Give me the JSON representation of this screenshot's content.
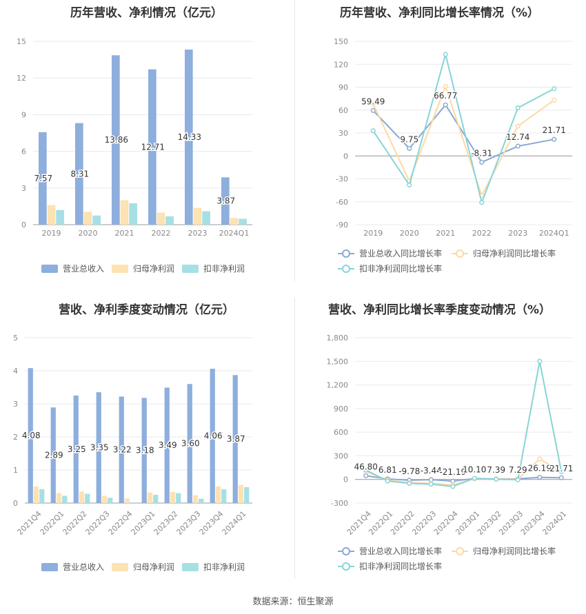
{
  "source_label": "数据来源：恒生聚源",
  "colors": {
    "revenue": "#8eaedd",
    "netprofit": "#fde2b2",
    "deducted": "#a6e0e4",
    "revenue_line": "#8aa8d4",
    "netprofit_line": "#fdd9a0",
    "deducted_line": "#86d4d8"
  },
  "chart_data": [
    {
      "type": "bar",
      "title": "历年营收、净利情况（亿元）",
      "categories": [
        "2019",
        "2020",
        "2021",
        "2022",
        "2023",
        "2024Q1"
      ],
      "ylim": [
        0,
        15
      ],
      "yticks": [
        "0",
        "3",
        "6",
        "9",
        "12",
        "15"
      ],
      "series": [
        {
          "name": "营业总收入",
          "values": [
            7.57,
            8.31,
            13.86,
            12.71,
            14.33,
            3.87
          ],
          "labels": [
            "7.57",
            "8.31",
            "13.86",
            "12.71",
            "14.33",
            "3.87"
          ]
        },
        {
          "name": "归母净利润",
          "values": [
            1.6,
            1.05,
            2.0,
            0.98,
            1.38,
            0.55
          ]
        },
        {
          "name": "扣非净利润",
          "values": [
            1.2,
            0.75,
            1.75,
            0.68,
            1.1,
            0.48
          ]
        }
      ],
      "legend_position": "bottom",
      "grid": true
    },
    {
      "type": "line",
      "title": "历年营收、净利同比增长率情况（%）",
      "categories": [
        "2019",
        "2020",
        "2021",
        "2022",
        "2023",
        "2024Q1"
      ],
      "ylim": [
        -90,
        150
      ],
      "yticks": [
        "-90",
        "-60",
        "-30",
        "0",
        "30",
        "60",
        "90",
        "120",
        "150"
      ],
      "series": [
        {
          "name": "营业总收入同比增长率",
          "values": [
            59.49,
            9.75,
            66.77,
            -8.31,
            12.74,
            21.71
          ],
          "labels": [
            "59.49",
            "9.75",
            "66.77",
            "-8.31",
            "12.74",
            "21.71"
          ]
        },
        {
          "name": "归母净利润同比增长率",
          "values": [
            68,
            -33,
            91,
            -52,
            39,
            73
          ]
        },
        {
          "name": "扣非净利润同比增长率",
          "values": [
            33,
            -38,
            133,
            -61,
            63,
            88
          ]
        }
      ],
      "legend_position": "bottom",
      "grid": true
    },
    {
      "type": "bar",
      "title": "营收、净利季度变动情况（亿元）",
      "categories": [
        "2021Q4",
        "2022Q1",
        "2022Q2",
        "2022Q3",
        "2022Q4",
        "2023Q1",
        "2023Q2",
        "2023Q3",
        "2023Q4",
        "2024Q1"
      ],
      "ylim": [
        0,
        5
      ],
      "yticks": [
        "0",
        "1",
        "2",
        "3",
        "4",
        "5"
      ],
      "series": [
        {
          "name": "营业总收入",
          "values": [
            4.08,
            2.89,
            3.25,
            3.35,
            3.22,
            3.18,
            3.49,
            3.6,
            4.06,
            3.87
          ],
          "labels": [
            "4.08",
            "2.89",
            "3.25",
            "3.35",
            "3.22",
            "3.18",
            "3.49",
            "3.60",
            "4.06",
            "3.87"
          ]
        },
        {
          "name": "归母净利润",
          "values": [
            0.5,
            0.3,
            0.35,
            0.22,
            0.14,
            0.32,
            0.33,
            0.24,
            0.5,
            0.55
          ]
        },
        {
          "name": "扣非净利润",
          "values": [
            0.42,
            0.22,
            0.28,
            0.16,
            0.02,
            0.25,
            0.3,
            0.13,
            0.42,
            0.48
          ]
        }
      ],
      "legend_position": "bottom",
      "grid": true
    },
    {
      "type": "line",
      "title": "营收、净利同比增长率季度变动情况（%）",
      "categories": [
        "2021Q4",
        "2022Q1",
        "2022Q2",
        "2022Q3",
        "2022Q4",
        "2023Q1",
        "2023Q2",
        "2023Q3",
        "2023Q4",
        "2024Q1"
      ],
      "ylim": [
        -300,
        1800
      ],
      "yticks": [
        "-300",
        "0",
        "300",
        "600",
        "900",
        "1,200",
        "1,500",
        "1,800"
      ],
      "series": [
        {
          "name": "营业总收入同比增长率",
          "values": [
            46.8,
            6.81,
            -9.78,
            -3.44,
            -21.19,
            10.1,
            7.39,
            7.29,
            26.19,
            21.71
          ],
          "labels": [
            "46.80",
            "6.81",
            "-9.78",
            "-3.44",
            "-21.19",
            "10.10",
            "7.39",
            "7.29",
            "26.19",
            "21.71"
          ]
        },
        {
          "name": "归母净利润同比增长率",
          "values": [
            100,
            -10,
            -40,
            -50,
            -70,
            10,
            5,
            2,
            260,
            100
          ]
        },
        {
          "name": "扣非净利润同比增长率",
          "values": [
            120,
            -20,
            -50,
            -60,
            -90,
            15,
            2,
            -5,
            1500,
            100
          ]
        }
      ],
      "legend_position": "bottom",
      "grid": true
    }
  ]
}
